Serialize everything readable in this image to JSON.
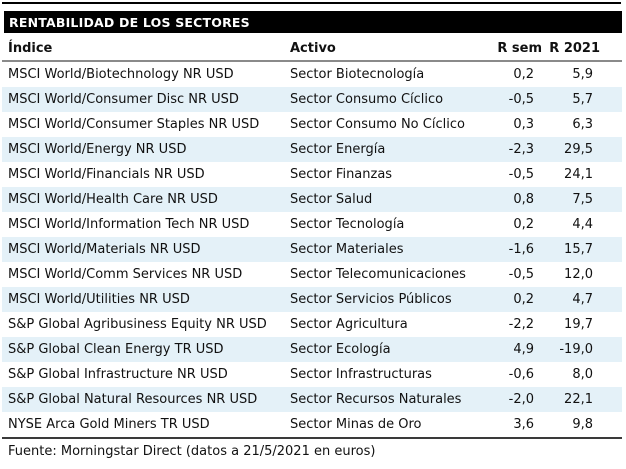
{
  "title": "RENTABILIDAD DE LOS SECTORES",
  "table": {
    "columns": [
      "Índice",
      "Activo",
      "R sem",
      "R 2021"
    ],
    "rows": [
      [
        "MSCI World/Biotechnology NR USD",
        "Sector Biotecnología",
        "0,2",
        "5,9"
      ],
      [
        "MSCI World/Consumer Disc NR USD",
        "Sector Consumo Cíclico",
        "-0,5",
        "5,7"
      ],
      [
        "MSCI World/Consumer Staples NR USD",
        "Sector Consumo No Cíclico",
        "0,3",
        "6,3"
      ],
      [
        "MSCI World/Energy NR USD",
        "Sector Energía",
        "-2,3",
        "29,5"
      ],
      [
        "MSCI World/Financials NR USD",
        "Sector Finanzas",
        "-0,5",
        "24,1"
      ],
      [
        "MSCI World/Health Care NR USD",
        "Sector Salud",
        "0,8",
        "7,5"
      ],
      [
        "MSCI World/Information Tech NR USD",
        "Sector Tecnología",
        "0,2",
        "4,4"
      ],
      [
        "MSCI World/Materials NR USD",
        "Sector Materiales",
        "-1,6",
        "15,7"
      ],
      [
        "MSCI World/Comm Services NR USD",
        "Sector Telecomunicaciones",
        "-0,5",
        "12,0"
      ],
      [
        "MSCI World/Utilities NR USD",
        "Sector Servicios Públicos",
        "0,2",
        "4,7"
      ],
      [
        "S&P Global Agribusiness Equity NR USD",
        "Sector Agricultura",
        "-2,2",
        "19,7"
      ],
      [
        "S&P Global Clean Energy TR USD",
        "Sector Ecología",
        "4,9",
        "-19,0"
      ],
      [
        "S&P Global Infrastructure NR USD",
        "Sector Infrastructuras",
        "-0,6",
        "8,0"
      ],
      [
        "S&P Global Natural Resources NR USD",
        "Sector Recursos Naturales",
        "-2,0",
        "22,1"
      ],
      [
        "NYSE Arca Gold Miners TR USD",
        "Sector Minas de Oro",
        "3,6",
        "9,8"
      ]
    ]
  },
  "footer": "Fuente: Morningstar Direct (datos a 21/5/2021 en euros)",
  "colors": {
    "title_bar_bg": "#000000",
    "title_text": "#ffffff",
    "stripe_row_bg": "#e4f1f8",
    "header_rule": "#8a8a8a",
    "bottom_rule": "#3a3a3a",
    "body_text": "#111111"
  }
}
